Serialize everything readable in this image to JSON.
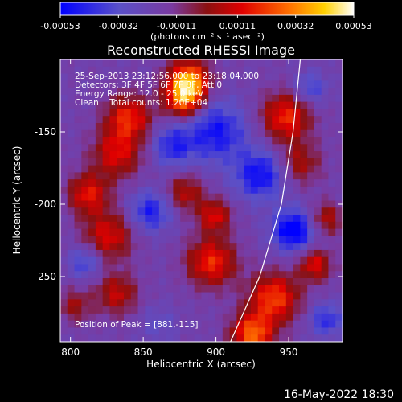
{
  "colorbar": {
    "tick_labels": [
      "-0.00053",
      "-0.00032",
      "-0.00011",
      "0.00011",
      "0.00032",
      "0.00053"
    ],
    "ticks": [
      -0.00053,
      -0.00032,
      -0.00011,
      0.00011,
      0.00032,
      0.00053
    ],
    "range": [
      -0.00053,
      0.00053
    ],
    "units": "(photons cm⁻² s⁻¹ asec⁻²)"
  },
  "chart_data": {
    "type": "heatmap",
    "title": "Reconstructed RHESSI Image",
    "xlabel": "Heliocentric X (arcsec)",
    "ylabel": "Heliocentric Y (arcsec)",
    "xlim": [
      793,
      987
    ],
    "ylim": [
      -295,
      -100
    ],
    "x_ticks": [
      800,
      850,
      900,
      950
    ],
    "x_tick_labels": [
      "800",
      "850",
      "900",
      "950"
    ],
    "y_ticks": [
      -150,
      -200,
      -250
    ],
    "y_tick_labels": [
      "-150",
      "-200",
      "-250"
    ],
    "annotations": [
      "25-Sep-2013 23:12:56.000 to 23:18:04.000",
      "Detectors: 3F 4F 5F 6F 7F 8F, Att 0",
      "Energy Range: 12.0 - 25.0 keV",
      "Clean    Total counts: 1.20E+04"
    ],
    "peak_label": "Position of Peak = [881,-115]",
    "peak": [
      881,
      -115
    ],
    "limb_curve": [
      [
        910,
        -295
      ],
      [
        930,
        -250
      ],
      [
        945,
        -200
      ],
      [
        953,
        -150
      ],
      [
        958,
        -100
      ]
    ],
    "colorscale": [
      "#0000ff",
      "#5a50c8",
      "#7a3aa0",
      "#8a1010",
      "#e00000",
      "#ff7000",
      "#ffd000",
      "#ffffff"
    ],
    "nx": 40,
    "ny": 40,
    "blobs": [
      [
        881,
        -115,
        10,
        0.00053
      ],
      [
        878,
        -128,
        9,
        0.0004
      ],
      [
        840,
        -140,
        11,
        0.00035
      ],
      [
        832,
        -165,
        12,
        0.0003
      ],
      [
        948,
        -140,
        12,
        0.00036
      ],
      [
        958,
        -172,
        10,
        0.00022
      ],
      [
        812,
        -193,
        10,
        0.00032
      ],
      [
        826,
        -222,
        12,
        0.0003
      ],
      [
        832,
        -262,
        10,
        0.00026
      ],
      [
        879,
        -192,
        9,
        0.00025
      ],
      [
        899,
        -208,
        8,
        0.0003
      ],
      [
        897,
        -240,
        12,
        0.00036
      ],
      [
        940,
        -265,
        12,
        0.0004
      ],
      [
        925,
        -290,
        10,
        0.00045
      ],
      [
        968,
        -242,
        8,
        0.0003
      ],
      [
        976,
        -210,
        8,
        0.00024
      ],
      [
        803,
        -270,
        8,
        0.0002
      ],
      [
        860,
        -283,
        9,
        -0.00011
      ],
      [
        900,
        -150,
        15,
        -0.0003
      ],
      [
        930,
        -180,
        12,
        -0.00032
      ],
      [
        953,
        -218,
        10,
        -0.0004
      ],
      [
        870,
        -160,
        10,
        -0.00025
      ],
      [
        855,
        -205,
        10,
        -0.00028
      ],
      [
        976,
        -280,
        8,
        -0.00025
      ],
      [
        810,
        -240,
        8,
        -0.00022
      ],
      [
        965,
        -120,
        8,
        -0.0002
      ]
    ]
  },
  "footer": {
    "date": "16-May-2022 18:30"
  }
}
